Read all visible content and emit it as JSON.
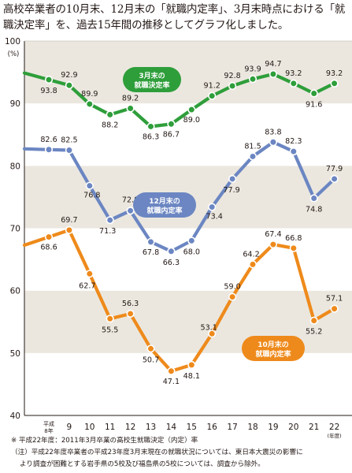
{
  "title": "高校卒業者の10月末、12月末の「就職内定率」、3月末時点における「就職決定率」を、過去15年間の推移としてグラフ化しました。",
  "chart_data": {
    "type": "line",
    "unit_label": "(%)",
    "x_unit_label": "(年度)",
    "ylim": [
      40,
      100
    ],
    "yticks": [
      40,
      50,
      60,
      70,
      80,
      90,
      100
    ],
    "grid": "alternating horizontal bands",
    "x_tick_labels": [
      {
        "x": 8,
        "lines": [
          "平成",
          "8年"
        ]
      },
      {
        "x": 9,
        "lines": [
          "9"
        ]
      },
      {
        "x": 10,
        "lines": [
          "10"
        ]
      },
      {
        "x": 11,
        "lines": [
          "11"
        ]
      },
      {
        "x": 12,
        "lines": [
          "12"
        ]
      },
      {
        "x": 13,
        "lines": [
          "13"
        ]
      },
      {
        "x": 14,
        "lines": [
          "14"
        ]
      },
      {
        "x": 15,
        "lines": [
          "15"
        ]
      },
      {
        "x": 16,
        "lines": [
          "16"
        ]
      },
      {
        "x": 17,
        "lines": [
          "17"
        ]
      },
      {
        "x": 18,
        "lines": [
          "18"
        ]
      },
      {
        "x": 19,
        "lines": [
          "19"
        ]
      },
      {
        "x": 20,
        "lines": [
          "20"
        ]
      },
      {
        "x": 21,
        "lines": [
          "21"
        ]
      },
      {
        "x": 22,
        "lines": [
          "22"
        ]
      }
    ],
    "series": [
      {
        "name": "3月末の就職決定率",
        "name_lines": [
          "3月末の",
          "就職決定率"
        ],
        "color": "#2e9e3a",
        "x": [
          8,
          9,
          10,
          11,
          12,
          13,
          14,
          15,
          16,
          17,
          18,
          19,
          20,
          21,
          22
        ],
        "values": [
          93.8,
          92.9,
          89.9,
          88.2,
          89.2,
          86.3,
          86.7,
          89.0,
          91.2,
          92.8,
          93.9,
          94.7,
          93.2,
          91.6,
          93.2
        ]
      },
      {
        "name": "12月末の就職内定率",
        "name_lines": [
          "12月末の",
          "就職内定率"
        ],
        "color": "#6b86c2",
        "x": [
          8,
          9,
          10,
          11,
          12,
          13,
          14,
          15,
          16,
          17,
          18,
          19,
          20,
          21,
          22
        ],
        "values": [
          82.6,
          82.5,
          76.8,
          71.3,
          72.8,
          67.8,
          66.3,
          68.0,
          73.4,
          77.9,
          81.5,
          83.8,
          82.3,
          74.8,
          77.9
        ]
      },
      {
        "name": "10月末の就職内定率",
        "name_lines": [
          "10月末の",
          "就職内定率"
        ],
        "color": "#ee8a1b",
        "x": [
          8,
          9,
          10,
          11,
          12,
          13,
          14,
          15,
          16,
          17,
          18,
          19,
          20,
          21,
          22
        ],
        "values": [
          68.6,
          69.7,
          62.7,
          55.5,
          56.3,
          50.7,
          47.1,
          48.1,
          53.1,
          59.0,
          64.2,
          67.4,
          66.8,
          55.2,
          57.1
        ]
      }
    ]
  },
  "notes": {
    "note1": "※ 平成22年度：2011年3月卒業の高校生就職決定（内定）率",
    "note2_line1": "（注）平成22年度卒業者の平成23年度3月末現在の就職状況については、東日本大震災の影響に",
    "note2_line2": "より調査が困難とする岩手県の5校及び福島県の5校については、調査から除外。"
  }
}
